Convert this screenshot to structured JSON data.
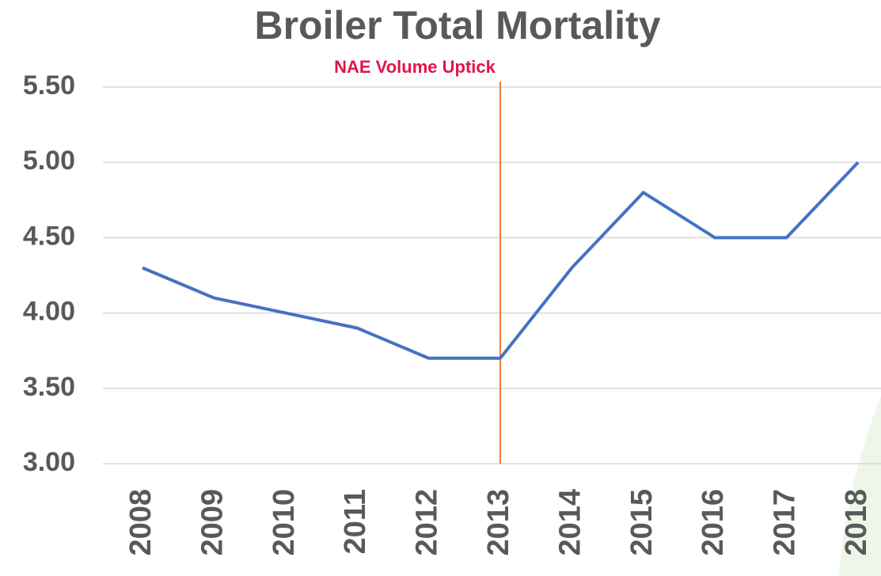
{
  "chart_data": {
    "type": "line",
    "title": "Broiler Total Mortality",
    "categories": [
      "2008",
      "2009",
      "2010",
      "2011",
      "2012",
      "2013",
      "2014",
      "2015",
      "2016",
      "2017",
      "2018"
    ],
    "series": [
      {
        "name": "Broiler Total Mortality",
        "color": "#4472c4",
        "values": [
          4.3,
          4.1,
          4.0,
          3.9,
          3.7,
          3.7,
          4.3,
          4.8,
          4.5,
          4.5,
          5.0
        ]
      }
    ],
    "ylim": [
      3,
      5.5
    ],
    "yticks": [
      {
        "value": 3,
        "label": "3.00"
      },
      {
        "value": 3.5,
        "label": "3.50"
      },
      {
        "value": 4,
        "label": "4.00"
      },
      {
        "value": 4.5,
        "label": "4.50"
      },
      {
        "value": 5,
        "label": "5.00"
      },
      {
        "value": 5.5,
        "label": "5.50"
      }
    ],
    "grid": true,
    "annotations": [
      {
        "label": "NAE Volume Uptick",
        "x": "2013",
        "color": "#ed7d31",
        "text_color": "#e0144c"
      }
    ]
  }
}
